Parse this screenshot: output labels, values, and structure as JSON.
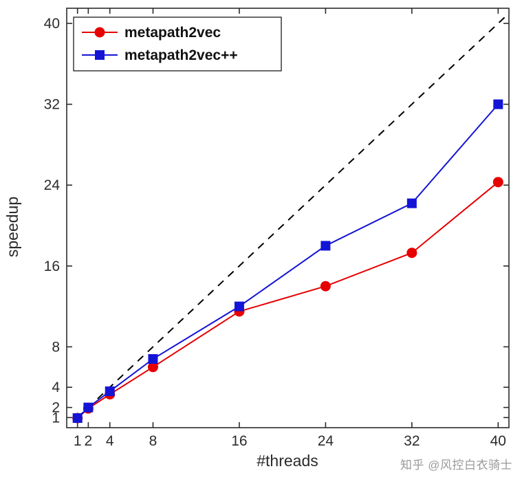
{
  "chart_data": {
    "type": "line",
    "title": "",
    "xlabel": "#threads",
    "ylabel": "speedup",
    "xlim": [
      0,
      41
    ],
    "ylim": [
      0,
      41.5
    ],
    "grid": false,
    "legend_position": "top-left",
    "xticks": [
      1,
      2,
      4,
      8,
      16,
      24,
      32,
      40
    ],
    "yticks": [
      1,
      2,
      4,
      8,
      16,
      24,
      32,
      40
    ],
    "x": [
      1,
      2,
      4,
      8,
      16,
      24,
      32,
      40
    ],
    "series": [
      {
        "name": "metapath2vec",
        "color": "#e60000",
        "marker": "circle",
        "values": [
          0.95,
          1.9,
          3.3,
          6.0,
          11.5,
          14.0,
          17.3,
          24.3
        ]
      },
      {
        "name": "metapath2vec++",
        "color": "#1414d6",
        "marker": "square",
        "values": [
          0.95,
          2.0,
          3.6,
          6.8,
          12.0,
          18.0,
          22.2,
          32.0
        ]
      }
    ],
    "ideal_line": {
      "style": "dashed",
      "color": "#000000",
      "from": [
        1,
        1
      ],
      "to": [
        40.6,
        40.6
      ]
    }
  },
  "watermark": "知乎 @风控白衣骑士"
}
